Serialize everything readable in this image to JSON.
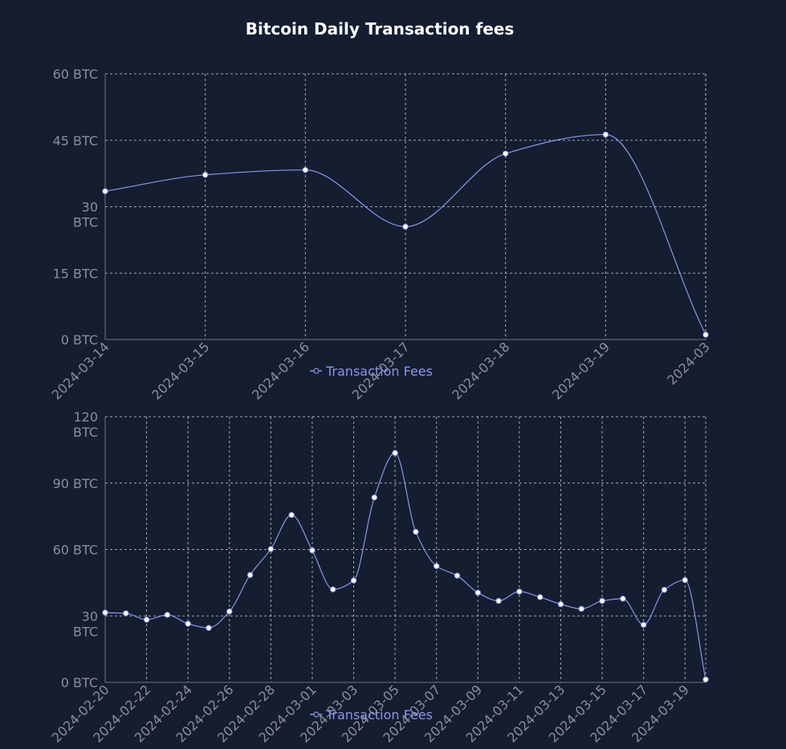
{
  "title": "Bitcoin Daily Transaction fees",
  "colors": {
    "background": "#141e30",
    "line": "#8f94e8",
    "grid": "#cfd3da",
    "axis_text": "#8a8f99",
    "point_fill": "#ffffff"
  },
  "chart_data": [
    {
      "type": "line",
      "title": "",
      "x": [
        "2024-03-14",
        "2024-03-15",
        "2024-03-16",
        "2024-03-17",
        "2024-03-18",
        "2024-03-19",
        "2024-03-20"
      ],
      "x_tick_labels": [
        "2024-03-14",
        "2024-03-15",
        "2024-03-16",
        "2024-03-17",
        "2024-03-18",
        "2024-03-19",
        "2024-03"
      ],
      "series": [
        {
          "name": "Transaction Fees",
          "values": [
            33.5,
            37.2,
            38.3,
            25.5,
            42.0,
            46.3,
            1.1
          ]
        }
      ],
      "ylim": [
        0,
        60
      ],
      "y_ticks": [
        {
          "value": 0,
          "lines": [
            "0 BTC"
          ]
        },
        {
          "value": 15,
          "lines": [
            "15 BTC"
          ]
        },
        {
          "value": 30,
          "lines": [
            "30",
            "BTC"
          ]
        },
        {
          "value": 45,
          "lines": [
            "45 BTC"
          ]
        },
        {
          "value": 60,
          "lines": [
            "60 BTC"
          ]
        }
      ],
      "grid": true,
      "legend": "bottom-center"
    },
    {
      "type": "line",
      "title": "",
      "x": [
        "2024-02-20",
        "2024-02-21",
        "2024-02-22",
        "2024-02-23",
        "2024-02-24",
        "2024-02-25",
        "2024-02-26",
        "2024-02-27",
        "2024-02-28",
        "2024-02-29",
        "2024-03-01",
        "2024-03-02",
        "2024-03-03",
        "2024-03-04",
        "2024-03-05",
        "2024-03-06",
        "2024-03-07",
        "2024-03-08",
        "2024-03-09",
        "2024-03-10",
        "2024-03-11",
        "2024-03-12",
        "2024-03-13",
        "2024-03-14",
        "2024-03-15",
        "2024-03-16",
        "2024-03-17",
        "2024-03-18",
        "2024-03-19",
        "2024-03-20"
      ],
      "x_tick_labels": [
        "2024-02-20",
        "2024-02-22",
        "2024-02-24",
        "2024-02-26",
        "2024-02-28",
        "2024-03-01",
        "2024-03-03",
        "2024-03-05",
        "2024-03-07",
        "2024-03-09",
        "2024-03-11",
        "2024-03-13",
        "2024-03-15",
        "2024-03-17",
        "2024-03-19"
      ],
      "series": [
        {
          "name": "Transaction Fees",
          "values": [
            31.5,
            31.2,
            28.3,
            30.5,
            26.5,
            24.6,
            32.0,
            48.5,
            60.2,
            75.6,
            59.6,
            42.0,
            46.0,
            83.5,
            103.6,
            68.0,
            52.5,
            48.2,
            40.5,
            36.8,
            41.0,
            38.5,
            35.3,
            33.2,
            36.8,
            37.8,
            26.0,
            41.8,
            46.2,
            1.3
          ]
        }
      ],
      "ylim": [
        0,
        120
      ],
      "y_ticks": [
        {
          "value": 0,
          "lines": [
            "0 BTC"
          ]
        },
        {
          "value": 30,
          "lines": [
            "30",
            "BTC"
          ]
        },
        {
          "value": 60,
          "lines": [
            "60 BTC"
          ]
        },
        {
          "value": 90,
          "lines": [
            "90 BTC"
          ]
        },
        {
          "value": 120,
          "lines": [
            "120",
            "BTC"
          ]
        }
      ],
      "grid": true,
      "legend": "bottom-center"
    }
  ]
}
